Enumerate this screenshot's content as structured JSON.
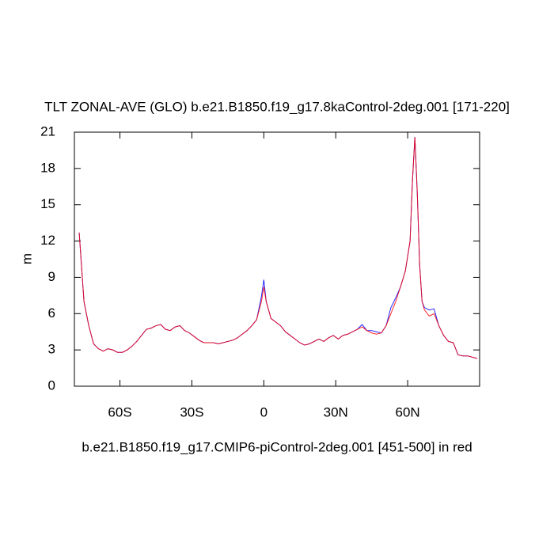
{
  "chart_data": {
    "type": "line",
    "title": "TLT ZONAL-AVE (GLO) b.e21.B1850.f19_g17.8kaControl-2deg.001 [171-220]",
    "ylabel": "m",
    "xlabel": "b.e21.B1850.f19_g17.CMIP6-piControl-2deg.001 [451-500] in red",
    "xlim": [
      -79,
      90
    ],
    "ylim": [
      0,
      21
    ],
    "xticks": [
      {
        "value": -60,
        "label": "60S"
      },
      {
        "value": -30,
        "label": "30S"
      },
      0,
      {
        "value": 30,
        "label": "30N"
      },
      {
        "value": 60,
        "label": "60N"
      }
    ],
    "yticks": [
      0,
      3,
      6,
      9,
      12,
      15,
      18,
      21
    ],
    "x": [
      -77,
      -75,
      -73,
      -71,
      -69,
      -67,
      -65,
      -63,
      -61,
      -59,
      -57,
      -55,
      -53,
      -51,
      -49,
      -47,
      -45,
      -43,
      -41,
      -39,
      -37,
      -35,
      -33,
      -31,
      -29,
      -27,
      -25,
      -23,
      -21,
      -19,
      -17,
      -15,
      -13,
      -11,
      -9,
      -7,
      -5,
      -3,
      -1,
      0,
      1,
      3,
      5,
      7,
      9,
      11,
      13,
      15,
      17,
      19,
      21,
      23,
      25,
      27,
      29,
      31,
      33,
      35,
      37,
      39,
      41,
      43,
      45,
      47,
      49,
      51,
      53,
      55,
      57,
      59,
      61,
      62,
      63,
      64,
      65,
      66,
      67,
      69,
      71,
      73,
      75,
      77,
      79,
      81,
      83,
      85,
      87,
      89
    ],
    "series": [
      {
        "color": "#0000ff",
        "values": [
          12.7,
          7,
          5,
          3.5,
          3.1,
          2.9,
          3.1,
          3.0,
          2.8,
          2.8,
          3.0,
          3.3,
          3.7,
          4.2,
          4.7,
          4.8,
          5.0,
          5.1,
          4.7,
          4.6,
          4.9,
          5.0,
          4.6,
          4.4,
          4.1,
          3.8,
          3.6,
          3.6,
          3.6,
          3.5,
          3.6,
          3.7,
          3.8,
          4.0,
          4.3,
          4.6,
          5.0,
          5.5,
          7.4,
          8.8,
          7.0,
          5.6,
          5.3,
          5.0,
          4.5,
          4.2,
          3.9,
          3.6,
          3.4,
          3.5,
          3.7,
          3.9,
          3.7,
          4.0,
          4.2,
          3.9,
          4.2,
          4.3,
          4.5,
          4.7,
          5.1,
          4.6,
          4.6,
          4.5,
          4.4,
          5.0,
          6.5,
          7.3,
          8.2,
          9.5,
          12.0,
          17,
          20.6,
          16,
          10,
          7,
          6.5,
          6.3,
          6.4,
          5.0,
          4.2,
          3.7,
          3.6,
          2.6,
          2.5,
          2.5,
          2.4,
          2.3
        ]
      },
      {
        "color": "#ff0000",
        "values": [
          12.7,
          7,
          5,
          3.5,
          3.1,
          2.9,
          3.1,
          3.0,
          2.8,
          2.8,
          3.0,
          3.3,
          3.7,
          4.2,
          4.7,
          4.8,
          5.0,
          5.1,
          4.7,
          4.6,
          4.9,
          5.0,
          4.6,
          4.4,
          4.1,
          3.8,
          3.6,
          3.6,
          3.6,
          3.5,
          3.6,
          3.7,
          3.8,
          4.0,
          4.3,
          4.6,
          5.0,
          5.5,
          7.0,
          8.2,
          7.0,
          5.6,
          5.3,
          5.0,
          4.5,
          4.2,
          3.9,
          3.6,
          3.4,
          3.5,
          3.7,
          3.9,
          3.7,
          4.0,
          4.2,
          3.9,
          4.2,
          4.3,
          4.5,
          4.7,
          4.9,
          4.6,
          4.4,
          4.3,
          4.4,
          5.0,
          6.0,
          7.0,
          8.2,
          9.5,
          12.0,
          17,
          20.6,
          16,
          10,
          7,
          6.3,
          5.8,
          6.0,
          5.0,
          4.2,
          3.7,
          3.6,
          2.6,
          2.5,
          2.5,
          2.4,
          2.3
        ]
      }
    ]
  }
}
